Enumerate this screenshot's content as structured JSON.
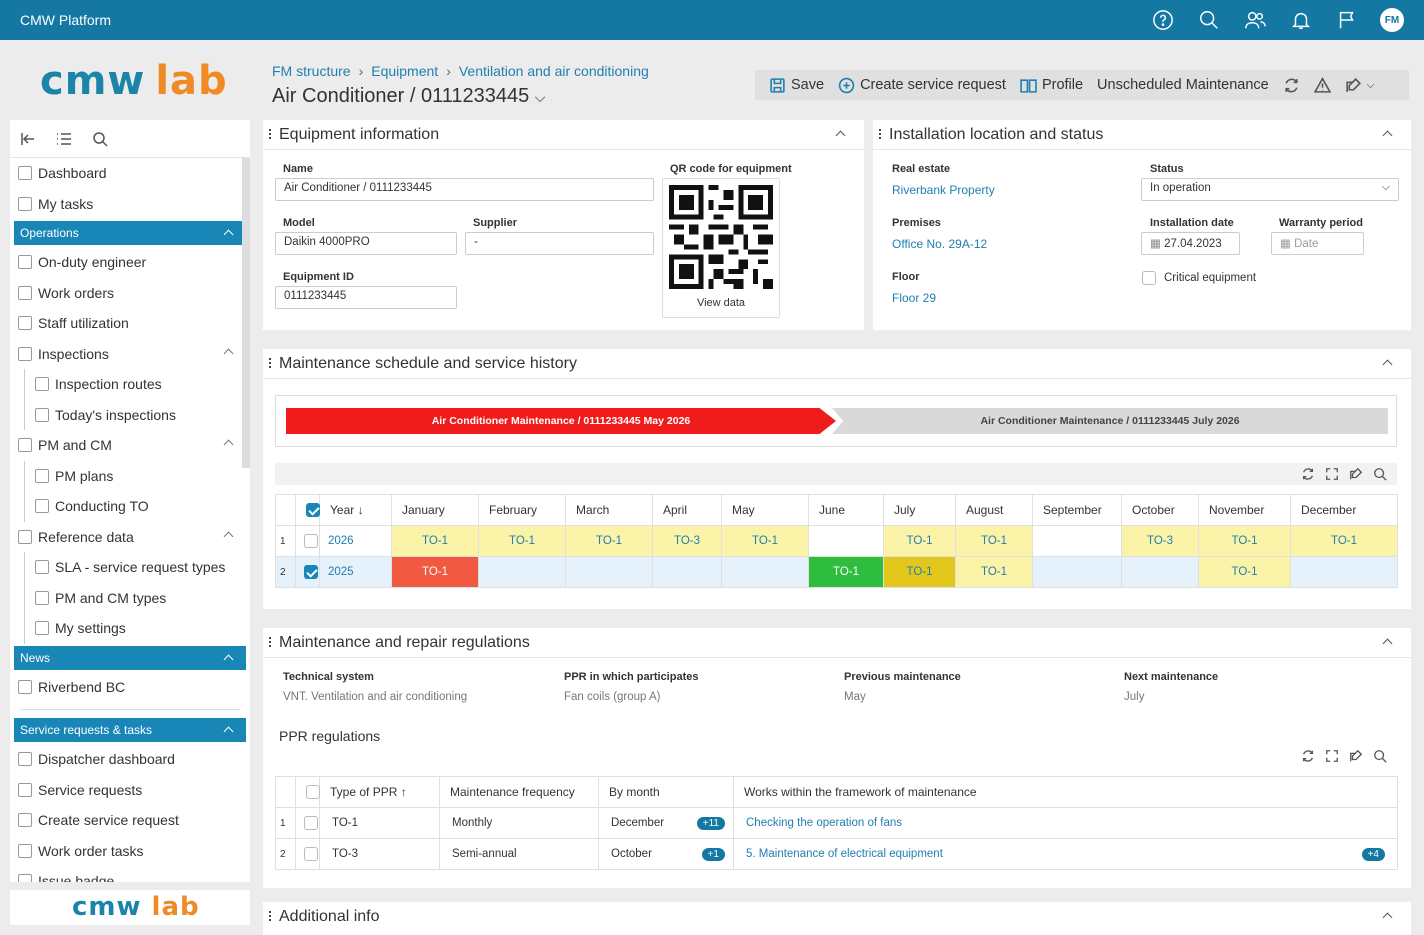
{
  "app": {
    "title": "CMW Platform",
    "user_initials": "FM"
  },
  "logo": {
    "part1": "cmw",
    "part2": "lab"
  },
  "sidebar": {
    "items_top": [
      {
        "label": "Dashboard",
        "icon": "monitor-icon"
      },
      {
        "label": "My tasks",
        "icon": "list-check-icon"
      }
    ],
    "groups": [
      {
        "label": "Operations"
      },
      {
        "label": "News"
      },
      {
        "label": "Service requests & tasks"
      }
    ],
    "operations": [
      {
        "label": "On-duty engineer",
        "sub": false
      },
      {
        "label": "Work orders",
        "sub": false
      },
      {
        "label": "Staff utilization",
        "sub": false
      },
      {
        "label": "Inspections",
        "sub": false,
        "expand": true
      },
      {
        "label": "Inspection routes",
        "sub": true
      },
      {
        "label": "Today's inspections",
        "sub": true
      },
      {
        "label": "PM and CM",
        "sub": false,
        "expand": true
      },
      {
        "label": "PM plans",
        "sub": true
      },
      {
        "label": "Conducting TO",
        "sub": true
      },
      {
        "label": "Reference data",
        "sub": false,
        "expand": true
      },
      {
        "label": "SLA - service request types",
        "sub": true
      },
      {
        "label": "PM and CM types",
        "sub": true
      },
      {
        "label": "My settings",
        "sub": true
      }
    ],
    "news": [
      {
        "label": "Riverbend BC"
      }
    ],
    "service": [
      {
        "label": "Dispatcher dashboard"
      },
      {
        "label": "Service requests"
      },
      {
        "label": "Create service request"
      },
      {
        "label": "Work order tasks"
      },
      {
        "label": "Issue badge"
      }
    ]
  },
  "breadcrumb": [
    "FM structure",
    "Equipment",
    "Ventilation and air conditioning"
  ],
  "page_title": "Air Conditioner / 0111233445",
  "toolbar": {
    "save": "Save",
    "create": "Create service request",
    "profile": "Profile",
    "unscheduled": "Unscheduled Maintenance"
  },
  "equipment": {
    "title": "Equipment information",
    "name_label": "Name",
    "name": "Air Conditioner / 0111233445",
    "model_label": "Model",
    "model": "Daikin 4000PRO",
    "supplier_label": "Supplier",
    "supplier": "-",
    "id_label": "Equipment ID",
    "id": "0111233445",
    "qr_label": "QR code for equipment",
    "qr_link": "View data"
  },
  "location": {
    "title": "Installation location and status",
    "real_estate_label": "Real estate",
    "real_estate": "Riverbank Property",
    "premises_label": "Premises",
    "premises": "Office No. 29A-12",
    "floor_label": "Floor",
    "floor": "Floor 29",
    "status_label": "Status",
    "status": "In operation",
    "install_label": "Installation date",
    "install": "27.04.2023",
    "warranty_label": "Warranty period",
    "warranty_placeholder": "Date",
    "critical_label": "Critical equipment"
  },
  "schedule": {
    "title": "Maintenance schedule and service history",
    "bar1": "Air Conditioner Maintenance / 0111233445 May 2026",
    "bar2": "Air Conditioner Maintenance / 0111233445 July 2026",
    "headers": [
      "Year ↓",
      "January",
      "February",
      "March",
      "April",
      "May",
      "June",
      "July",
      "August",
      "September",
      "October",
      "November",
      "December"
    ],
    "rows": [
      {
        "n": "1",
        "year": "2026",
        "checked": false,
        "cells": [
          "TO-1",
          "TO-1",
          "TO-1",
          "TO-3",
          "TO-1",
          "",
          "TO-1",
          "TO-1",
          "",
          "TO-3",
          "TO-1",
          "TO-1"
        ]
      },
      {
        "n": "2",
        "year": "2025",
        "checked": true,
        "cells": [
          "TO-1",
          "",
          "",
          "",
          "",
          "TO-1",
          "TO-1",
          "TO-1",
          "",
          "",
          "TO-1",
          ""
        ]
      }
    ],
    "colors": {
      "yellow": "#fbf3a8",
      "red": "#f15a40",
      "green": "#2ebd3e",
      "gold": "#e3c81b",
      "row2": "#e6f2fb"
    }
  },
  "regulations": {
    "title": "Maintenance and repair regulations",
    "tech_label": "Technical system",
    "tech": "VNT. Ventilation and air conditioning",
    "ppr_label": "PPR in which participates",
    "ppr": "Fan coils (group A)",
    "prev_label": "Previous maintenance",
    "prev": "May",
    "next_label": "Next maintenance",
    "next": "July",
    "sub_title": "PPR regulations",
    "headers": [
      "Type of PPR ↑",
      "Maintenance frequency",
      "By month",
      "Works within the framework of maintenance"
    ],
    "rows": [
      {
        "n": "1",
        "type": "TO-1",
        "freq": "Monthly",
        "month": "December",
        "month_badge": "+11",
        "works": "Checking the operation of fans",
        "works_badge": ""
      },
      {
        "n": "2",
        "type": "TO-3",
        "freq": "Semi-annual",
        "month": "October",
        "month_badge": "+1",
        "works": "5. Maintenance of electrical equipment",
        "works_badge": "+4"
      }
    ]
  },
  "additional": {
    "title": "Additional info"
  }
}
